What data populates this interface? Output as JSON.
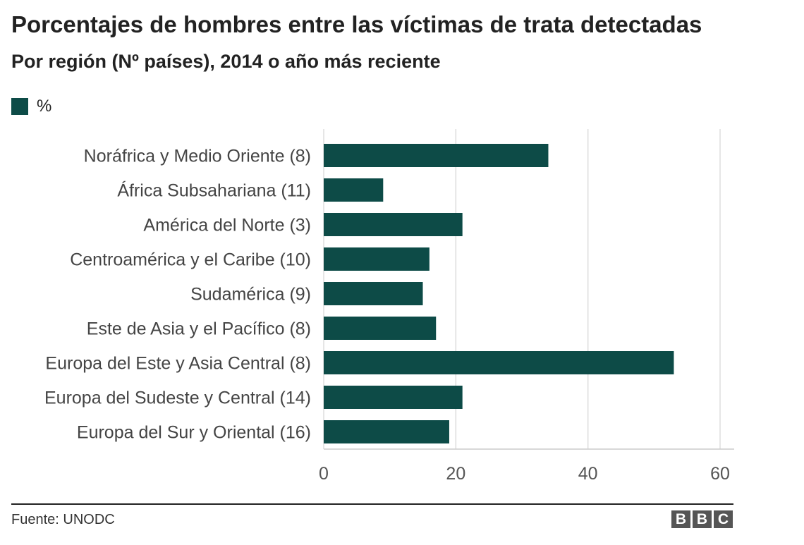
{
  "title": "Porcentajes de hombres entre las víctimas de trata detectadas",
  "subtitle": "Por región (Nº países), 2014 o año más reciente",
  "legend": {
    "label": "%",
    "color": "#0d4b47"
  },
  "chart_data": {
    "type": "bar",
    "orientation": "horizontal",
    "categories": [
      "Noráfrica y Medio Oriente (8)",
      "África Subsahariana (11)",
      "América del Norte (3)",
      "Centroamérica y el Caribe (10)",
      "Sudamérica (9)",
      "Este de Asia y el Pacífico (8)",
      "Europa del Este y Asia Central (8)",
      "Europa del Sudeste y Central (14)",
      "Europa del Sur y Oriental (16)"
    ],
    "series": [
      {
        "name": "%",
        "color": "#0d4b47",
        "values": [
          34,
          9,
          21,
          16,
          15,
          17,
          53,
          21,
          19
        ]
      }
    ],
    "xlim": [
      0,
      60
    ],
    "xticks": [
      0,
      20,
      40,
      60
    ],
    "grid": true,
    "legend_position": "top-left"
  },
  "footer": {
    "source": "Fuente: UNODC",
    "logo_letters": [
      "B",
      "B",
      "C"
    ]
  }
}
